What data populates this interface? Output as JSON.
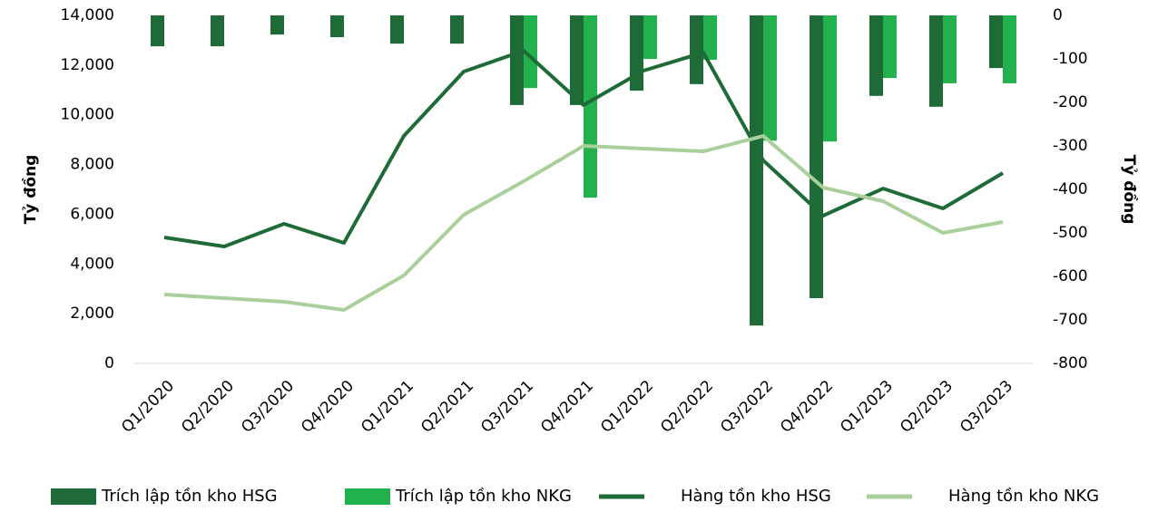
{
  "chart_data": {
    "type": "bar_line",
    "y_label": "Tỷ đồng",
    "y2_label": "Tỷ đồng",
    "categories": [
      "Q1/2020",
      "Q2/2020",
      "Q3/2020",
      "Q4/2020",
      "Q1/2021",
      "Q2/2021",
      "Q3/2021",
      "Q4/2021",
      "Q1/2022",
      "Q2/2022",
      "Q3/2022",
      "Q4/2022",
      "Q1/2023",
      "Q2/2023",
      "Q3/2023"
    ],
    "ylim": [
      0,
      14000
    ],
    "yticks": [
      0,
      {
        "value": 2000,
        "label": "2,000"
      },
      {
        "value": 4000,
        "label": "4,000"
      },
      {
        "value": 6000,
        "label": "6,000"
      },
      {
        "value": 8000,
        "label": "8,000"
      },
      {
        "value": 10000,
        "label": "10,000"
      },
      {
        "value": 12000,
        "label": "12,000"
      },
      {
        "value": 14000,
        "label": "14,000"
      }
    ],
    "y2lim": [
      -800,
      0
    ],
    "y2ticks": [
      0,
      -100,
      -200,
      -300,
      -400,
      -500,
      -600,
      -700,
      -800
    ],
    "series": [
      {
        "name": "Trích lập tồn kho HSG",
        "type": "bar",
        "axis": "y2",
        "color": "#1e6b38",
        "values": [
          -71,
          -71,
          -44,
          -50,
          -65,
          -65,
          -206,
          -206,
          -173,
          -158,
          -713,
          -650,
          -185,
          -210,
          -121
        ]
      },
      {
        "name": "Trích lập tồn kho NKG",
        "type": "bar",
        "axis": "y2",
        "color": "#22b14c",
        "values": [
          null,
          null,
          null,
          null,
          null,
          null,
          -167,
          -419,
          -100,
          -102,
          -288,
          -290,
          -144,
          -156,
          -156
        ]
      },
      {
        "name": "Hàng tồn kho HSG",
        "type": "line",
        "color": "#1e6b38",
        "values": [
          5068,
          4703,
          5615,
          4849,
          9151,
          11740,
          12578,
          10391,
          11776,
          12505,
          8167,
          5943,
          7036,
          6234,
          7656
        ]
      },
      {
        "name": "Hàng tồn kho NKG",
        "type": "line",
        "color": "#a9d09b",
        "values": [
          2771,
          2625,
          2479,
          2151,
          3536,
          5979,
          7328,
          8750,
          8641,
          8531,
          9151,
          7073,
          6526,
          5250,
          5688
        ]
      }
    ]
  }
}
